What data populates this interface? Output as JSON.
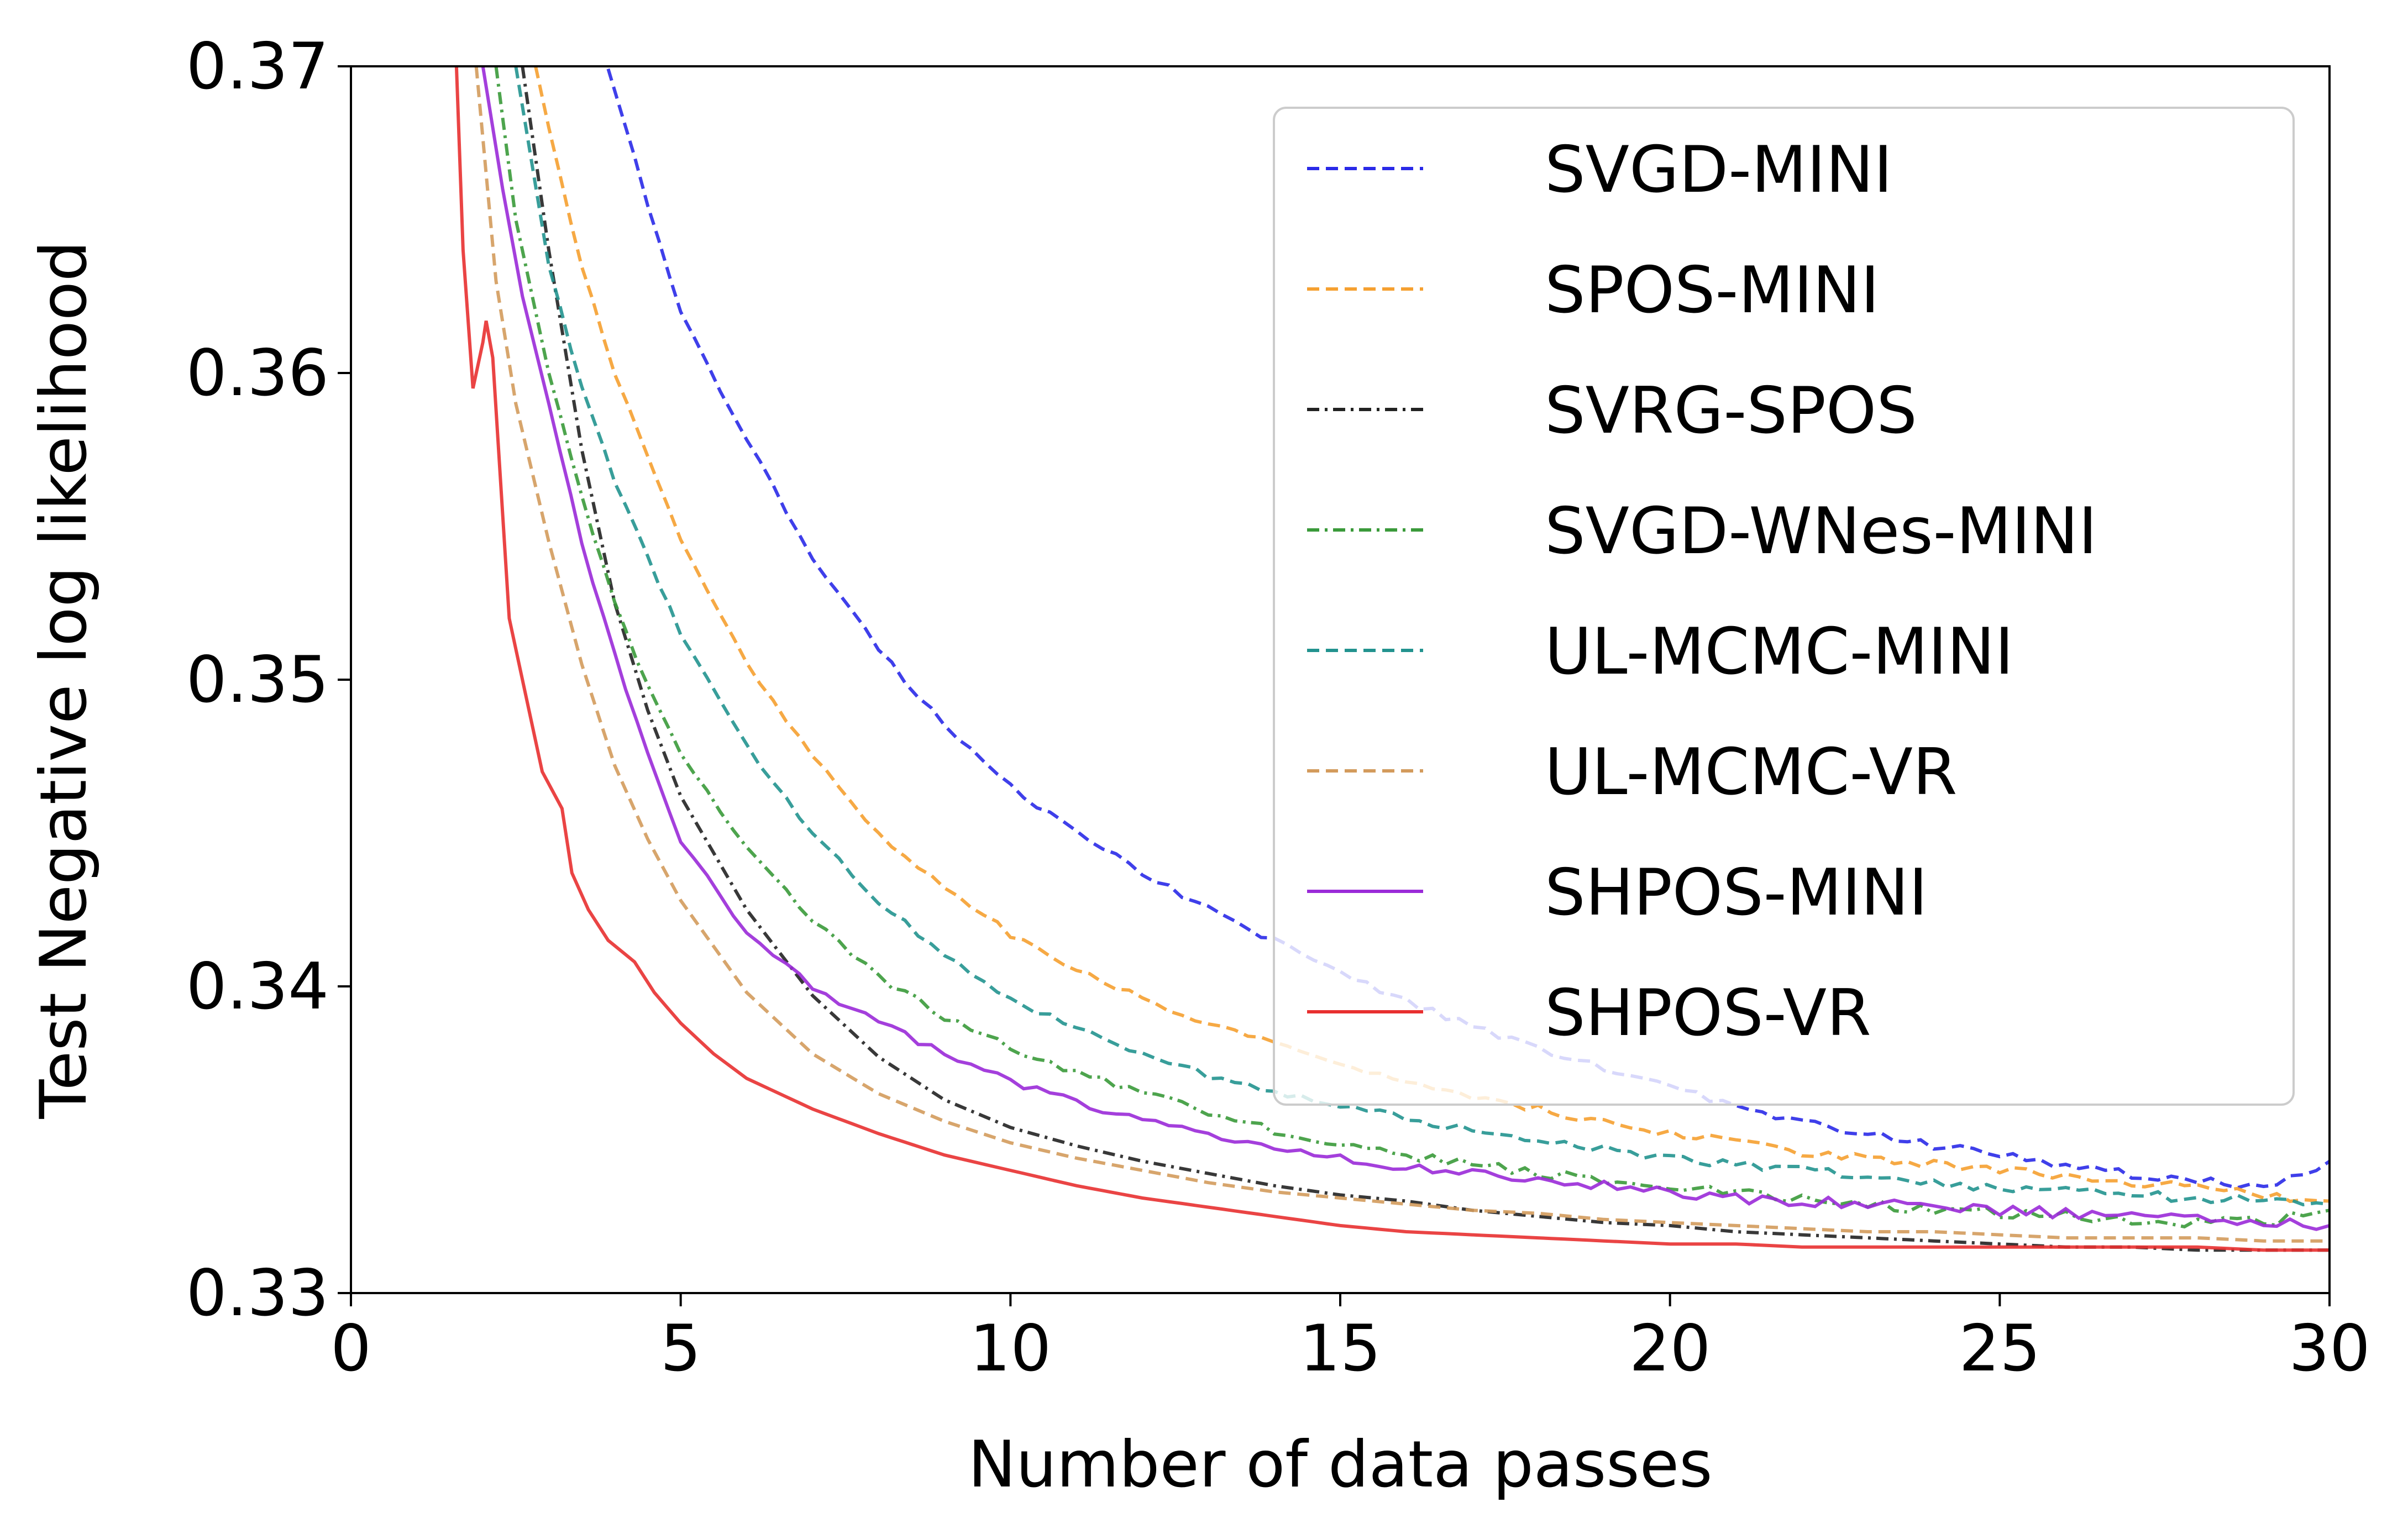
{
  "chart_data": {
    "type": "line",
    "title": "",
    "xlabel": "Number of data passes",
    "ylabel": "Test Negative log likelihood",
    "xlim": [
      0,
      30
    ],
    "ylim": [
      0.33,
      0.37
    ],
    "xticks": [
      "0",
      "5",
      "10",
      "15",
      "20",
      "25",
      "30"
    ],
    "yticks": [
      "0.33",
      "0.34",
      "0.35",
      "0.36",
      "0.37"
    ],
    "grid": false,
    "legend_position": "top-right",
    "series": [
      {
        "name": "SVGD-MINI",
        "color": "#2a2ae8",
        "dash": "dashed",
        "jitter": 8e-05,
        "x": [
          3.9,
          4.5,
          5,
          6,
          7,
          8,
          9,
          10,
          11,
          12,
          13,
          14,
          15,
          16,
          17,
          18,
          19,
          20,
          21,
          22,
          23,
          24,
          25,
          26,
          27,
          28,
          29,
          30
        ],
        "y": [
          0.37,
          0.3655,
          0.362,
          0.3578,
          0.354,
          0.351,
          0.3485,
          0.3465,
          0.345,
          0.3437,
          0.3425,
          0.3415,
          0.3405,
          0.3395,
          0.3387,
          0.338,
          0.3373,
          0.3367,
          0.3361,
          0.3356,
          0.3352,
          0.3348,
          0.3345,
          0.3342,
          0.3339,
          0.3337,
          0.3335,
          0.3343
        ]
      },
      {
        "name": "SPOS-MINI",
        "color": "#f5a030",
        "dash": "dashed",
        "jitter": 8e-05,
        "x": [
          2.8,
          3,
          3.5,
          4,
          5,
          6,
          7,
          8,
          9,
          10,
          11,
          12,
          13,
          14,
          15,
          16,
          17,
          18,
          19,
          20,
          21,
          22,
          23,
          24,
          25,
          26,
          27,
          28,
          29,
          30
        ],
        "y": [
          0.37,
          0.368,
          0.3635,
          0.36,
          0.3545,
          0.3505,
          0.3475,
          0.345,
          0.3432,
          0.3417,
          0.3405,
          0.3396,
          0.3388,
          0.3381,
          0.3375,
          0.3369,
          0.3364,
          0.336,
          0.3356,
          0.3352,
          0.3349,
          0.3346,
          0.3344,
          0.3342,
          0.334,
          0.3338,
          0.3336,
          0.3334,
          0.3332,
          0.333
        ]
      },
      {
        "name": "SVRG-SPOS",
        "color": "#222222",
        "dash": "dashdot",
        "jitter": 0,
        "x": [
          2.6,
          3,
          3.5,
          4,
          4.5,
          5,
          6,
          7,
          8,
          9,
          10,
          11,
          12,
          13,
          14,
          15,
          16,
          17,
          18,
          19,
          20,
          21,
          22,
          23,
          24,
          25,
          26,
          27,
          28,
          29,
          30
        ],
        "y": [
          0.37,
          0.364,
          0.3575,
          0.3525,
          0.349,
          0.3462,
          0.3425,
          0.3397,
          0.3377,
          0.3363,
          0.3354,
          0.3348,
          0.3343,
          0.3339,
          0.3335,
          0.3332,
          0.333,
          0.3327,
          0.3325,
          0.3323,
          0.3322,
          0.332,
          0.3319,
          0.3318,
          0.3317,
          0.3316,
          0.3315,
          0.3315,
          0.3314,
          0.3314,
          0.3314
        ]
      },
      {
        "name": "SVGD-WNes-MINI",
        "color": "#3a9a3a",
        "dash": "dashdot",
        "jitter": 9e-05,
        "x": [
          2.2,
          2.5,
          3,
          3.5,
          4,
          4.5,
          5,
          6,
          7,
          8,
          9,
          10,
          11,
          12,
          13,
          14,
          15,
          16,
          17,
          18,
          19,
          20,
          21,
          22,
          23,
          24,
          25,
          26,
          27,
          28,
          29,
          30
        ],
        "y": [
          0.37,
          0.365,
          0.36,
          0.356,
          0.3525,
          0.3498,
          0.3475,
          0.3445,
          0.3422,
          0.3403,
          0.339,
          0.338,
          0.3372,
          0.3365,
          0.3359,
          0.3353,
          0.3349,
          0.3345,
          0.3342,
          0.3339,
          0.3337,
          0.3335,
          0.3333,
          0.3331,
          0.3329,
          0.3327,
          0.3326,
          0.3325,
          0.3324,
          0.3323,
          0.3323,
          0.3327
        ]
      },
      {
        "name": "UL-MCMC-MINI",
        "color": "#22938f",
        "dash": "dashed",
        "jitter": 8e-05,
        "x": [
          2.5,
          3,
          3.5,
          4,
          4.5,
          5,
          6,
          7,
          8,
          9,
          10,
          11,
          12,
          13,
          14,
          15,
          16,
          17,
          18,
          19,
          20,
          21,
          22,
          23,
          24,
          25,
          26,
          27,
          28,
          29,
          30
        ],
        "y": [
          0.37,
          0.3635,
          0.3595,
          0.3565,
          0.354,
          0.3515,
          0.3478,
          0.345,
          0.3428,
          0.341,
          0.3396,
          0.3386,
          0.3378,
          0.3371,
          0.3366,
          0.3361,
          0.3357,
          0.3353,
          0.335,
          0.3347,
          0.3344,
          0.3342,
          0.334,
          0.3338,
          0.3336,
          0.3334,
          0.3333,
          0.3332,
          0.3331,
          0.333,
          0.3329
        ]
      },
      {
        "name": "UL-MCMC-VR",
        "color": "#d39b5c",
        "dash": "dashed",
        "jitter": 0,
        "x": [
          1.9,
          2.2,
          2.5,
          3,
          3.5,
          4,
          4.5,
          5,
          6,
          7,
          8,
          9,
          10,
          11,
          12,
          13,
          14,
          15,
          16,
          17,
          18,
          19,
          20,
          21,
          22,
          23,
          24,
          25,
          26,
          27,
          28,
          29,
          30
        ],
        "y": [
          0.37,
          0.363,
          0.359,
          0.3545,
          0.3505,
          0.3472,
          0.3448,
          0.3428,
          0.3398,
          0.3378,
          0.3365,
          0.3356,
          0.3349,
          0.3344,
          0.334,
          0.3336,
          0.3333,
          0.3331,
          0.3329,
          0.3327,
          0.3326,
          0.3324,
          0.3323,
          0.3322,
          0.3321,
          0.332,
          0.332,
          0.3319,
          0.3318,
          0.3318,
          0.3318,
          0.3317,
          0.3317
        ]
      },
      {
        "name": "SHPOS-MINI",
        "color": "#9a2ad8",
        "dash": "solid",
        "jitter": 0.0001,
        "x": [
          2,
          2.3,
          2.6,
          3,
          3.5,
          4,
          4.5,
          5,
          6,
          7,
          8,
          9,
          10,
          11,
          12,
          13,
          14,
          15,
          16,
          17,
          18,
          19,
          20,
          21,
          22,
          23,
          24,
          25,
          26,
          27,
          28,
          29,
          30
        ],
        "y": [
          0.37,
          0.366,
          0.3625,
          0.359,
          0.3545,
          0.3508,
          0.3475,
          0.3448,
          0.3418,
          0.34,
          0.3388,
          0.3378,
          0.3369,
          0.3362,
          0.3356,
          0.3351,
          0.3347,
          0.3344,
          0.3341,
          0.3339,
          0.3337,
          0.3335,
          0.3333,
          0.3331,
          0.333,
          0.3329,
          0.3328,
          0.3327,
          0.3326,
          0.3325,
          0.3324,
          0.3323,
          0.3322
        ]
      },
      {
        "name": "SHPOS-VR",
        "color": "#e83030",
        "dash": "solid",
        "jitter": 0,
        "x": [
          1.6,
          1.7,
          1.85,
          2.0,
          2.05,
          2.15,
          2.4,
          2.7,
          2.9,
          3.2,
          3.35,
          3.6,
          3.9,
          4.3,
          4.6,
          5,
          5.5,
          6,
          7,
          8,
          9,
          10,
          11,
          12,
          13,
          14,
          15,
          16,
          17,
          18,
          19,
          20,
          21,
          22,
          23,
          24,
          25,
          26,
          27,
          28,
          29,
          30
        ],
        "y": [
          0.37,
          0.364,
          0.3595,
          0.361,
          0.3617,
          0.3605,
          0.352,
          0.349,
          0.347,
          0.3458,
          0.3437,
          0.3425,
          0.3415,
          0.3408,
          0.3398,
          0.3388,
          0.3378,
          0.337,
          0.336,
          0.3352,
          0.3345,
          0.334,
          0.3335,
          0.3331,
          0.3328,
          0.3325,
          0.3322,
          0.332,
          0.3319,
          0.3318,
          0.3317,
          0.3316,
          0.3316,
          0.3315,
          0.3315,
          0.3315,
          0.3315,
          0.3315,
          0.3315,
          0.3315,
          0.3314,
          0.3314
        ]
      }
    ]
  }
}
